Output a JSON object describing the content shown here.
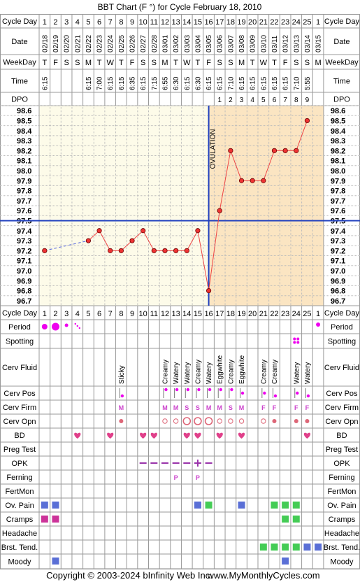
{
  "title": "BBT Chart (F °) for Cycle February 18, 2010",
  "copyright": "Copyright © 2003-2024 bInfinity Web Inc.",
  "site": "www.MyMonthlyCycles.com",
  "labels": {
    "cycle_day": "Cycle Day",
    "date": "Date",
    "weekday": "WeekDay",
    "time": "Time",
    "dpo": "DPO",
    "period": "Period",
    "spotting": "Spotting",
    "cerv_fluid": "Cerv Fluid",
    "cerv_pos": "Cerv Pos",
    "cerv_firm": "Cerv Firm",
    "cerv_opn": "Cerv Opn",
    "bd": "BD",
    "preg_test": "Preg Test",
    "opk": "OPK",
    "ferning": "Ferning",
    "fertmon": "FertMon",
    "ov_pain": "Ov. Pain",
    "cramps": "Cramps",
    "headache": "Headache",
    "brst_tend": "Brst. Tend.",
    "moody": "Moody",
    "ovulation": "OVULATION"
  },
  "colors": {
    "grid": "#999999",
    "pre_ovulation_bg": "#fdfbe9",
    "post_ovulation_bg": "#fbe5c2",
    "temp_line": "#ee4444",
    "point_fill": "#ee3333",
    "coverline": "#1f3fbf",
    "ovulation_line": "#1f3fbf",
    "period": "#ee00ee",
    "bd_heart": "#e0408a",
    "opk": "#9933aa",
    "blue_box": "#5a6fd6",
    "green_box": "#44cc55",
    "magenta_box": "#cc3399",
    "firm_text": "#cc44cc"
  },
  "chart_data": {
    "type": "line",
    "cycle_days": [
      "1",
      "2",
      "3",
      "4",
      "5",
      "6",
      "7",
      "8",
      "9",
      "10",
      "11",
      "12",
      "13",
      "14",
      "15",
      "16",
      "17",
      "18",
      "19",
      "20",
      "21",
      "22",
      "23",
      "24",
      "25",
      "1"
    ],
    "dates": [
      "02/18",
      "02/19",
      "02/20",
      "02/21",
      "02/22",
      "02/23",
      "02/24",
      "02/25",
      "02/26",
      "02/27",
      "02/28",
      "03/01",
      "03/02",
      "03/03",
      "03/04",
      "03/05",
      "03/06",
      "03/07",
      "03/08",
      "03/09",
      "03/10",
      "03/11",
      "03/12",
      "03/13",
      "03/14",
      "03/15"
    ],
    "weekdays": [
      "T",
      "F",
      "S",
      "S",
      "M",
      "T",
      "W",
      "T",
      "F",
      "S",
      "S",
      "M",
      "T",
      "W",
      "T",
      "F",
      "S",
      "S",
      "M",
      "T",
      "W",
      "T",
      "F",
      "S",
      "S",
      "M"
    ],
    "times": [
      "6:15",
      "",
      "",
      "",
      "6:15",
      "7:00",
      "6:15",
      "6:15",
      "6:35",
      "6:15",
      "7:15",
      "6:55",
      "6:30",
      "6:15",
      "6:30",
      "6:15",
      "6:15",
      "7:10",
      "6:15",
      "6:15",
      "6:15",
      "6:15",
      "6:15",
      "7:10",
      "5:55",
      ""
    ],
    "dpo": [
      "",
      "",
      "",
      "",
      "",
      "",
      "",
      "",
      "",
      "",
      "",
      "",
      "",
      "",
      "",
      "",
      "1",
      "2",
      "3",
      "4",
      "5",
      "6",
      "7",
      "8",
      "9",
      ""
    ],
    "temps": [
      97.2,
      null,
      null,
      null,
      97.3,
      97.4,
      97.2,
      97.2,
      97.3,
      97.4,
      97.2,
      97.2,
      97.2,
      97.2,
      97.4,
      96.8,
      97.6,
      98.2,
      97.9,
      97.9,
      97.9,
      98.2,
      98.2,
      98.2,
      98.5,
      null
    ],
    "y_ticks": [
      "98.6",
      "98.5",
      "98.4",
      "98.3",
      "98.2",
      "98.1",
      "98.0",
      "97.9",
      "97.8",
      "97.7",
      "97.6",
      "97.5",
      "97.4",
      "97.3",
      "97.2",
      "97.1",
      "97.0",
      "96.9",
      "96.8",
      "96.7"
    ],
    "ylim": [
      96.7,
      98.6
    ],
    "coverline": 97.5,
    "ovulation_day": 16,
    "dashed_gap": [
      1,
      5
    ],
    "grid": true
  },
  "rows": {
    "period": [
      "heavy-dot",
      "large-dot",
      "small-dot",
      "spotting-dots",
      "",
      "",
      "",
      "",
      "",
      "",
      "",
      "",
      "",
      "",
      "",
      "",
      "",
      "",
      "",
      "",
      "",
      "",
      "",
      "",
      "",
      "medium-dot"
    ],
    "spotting": [
      "",
      "",
      "",
      "",
      "",
      "",
      "",
      "",
      "",
      "",
      "",
      "",
      "",
      "",
      "",
      "",
      "",
      "",
      "",
      "",
      "",
      "",
      "",
      "spot-mark",
      "",
      ""
    ],
    "cerv_fluid": [
      "",
      "",
      "",
      "",
      "",
      "",
      "",
      "Sticky",
      "",
      "",
      "",
      "Creamy",
      "Watery",
      "Watery",
      "Creamy",
      "Watery",
      "Eggwhite",
      "Creamy",
      "Eggwhite",
      "",
      "Creamy",
      "Creamy",
      "",
      "Watery",
      "Watery",
      ""
    ],
    "cerv_pos": [
      "",
      "",
      "",
      "",
      "",
      "",
      "",
      "low",
      "",
      "",
      "",
      "high",
      "high",
      "high",
      "high",
      "high",
      "high",
      "high",
      "med",
      "",
      "med",
      "low",
      "",
      "med",
      "low",
      ""
    ],
    "cerv_firm": [
      "",
      "",
      "",
      "",
      "",
      "",
      "",
      "M",
      "",
      "",
      "",
      "M",
      "M",
      "S",
      "S",
      "M",
      "M",
      "S",
      "M",
      "",
      "F",
      "F",
      "",
      "F",
      "F",
      ""
    ],
    "cerv_opn": [
      "",
      "",
      "",
      "",
      "",
      "",
      "",
      "dot",
      "",
      "",
      "",
      "small",
      "small",
      "large",
      "large",
      "large",
      "small",
      "small",
      "small",
      "",
      "small",
      "dot",
      "",
      "dot",
      "dot",
      ""
    ],
    "bd": [
      false,
      false,
      false,
      true,
      false,
      false,
      true,
      false,
      false,
      true,
      true,
      false,
      false,
      true,
      true,
      false,
      true,
      false,
      true,
      false,
      false,
      false,
      false,
      false,
      true,
      false
    ],
    "opk": [
      "",
      "",
      "",
      "",
      "",
      "",
      "",
      "",
      "",
      "neg",
      "neg",
      "neg",
      "neg",
      "neg",
      "pos",
      "neg",
      "",
      "",
      "",
      "",
      "",
      "",
      "",
      "",
      "",
      ""
    ],
    "ferning": [
      "",
      "",
      "",
      "",
      "",
      "",
      "",
      "",
      "",
      "",
      "",
      "",
      "P",
      "",
      "P",
      "",
      "",
      "",
      "",
      "",
      "",
      "",
      "",
      "",
      "",
      ""
    ],
    "ov_pain": [
      "blue",
      "blue",
      "",
      "",
      "",
      "",
      "",
      "",
      "",
      "",
      "",
      "",
      "",
      "",
      "blue",
      "green",
      "",
      "",
      "blue",
      "",
      "",
      "green",
      "green",
      "green",
      "",
      ""
    ],
    "cramps": [
      "magenta",
      "magenta",
      "",
      "",
      "",
      "",
      "",
      "",
      "",
      "",
      "",
      "",
      "",
      "",
      "",
      "",
      "",
      "",
      "",
      "",
      "",
      "",
      "green",
      "green",
      "",
      ""
    ],
    "brst_tend": [
      "",
      "",
      "",
      "",
      "",
      "",
      "",
      "",
      "",
      "",
      "",
      "",
      "",
      "",
      "",
      "",
      "",
      "",
      "",
      "",
      "green",
      "green",
      "green",
      "green",
      "blue",
      "blue"
    ],
    "moody": [
      "",
      "blue",
      "",
      "",
      "",
      "",
      "",
      "",
      "",
      "",
      "",
      "",
      "",
      "",
      "",
      "",
      "",
      "",
      "",
      "",
      "",
      "",
      "blue",
      "",
      "",
      ""
    ]
  }
}
